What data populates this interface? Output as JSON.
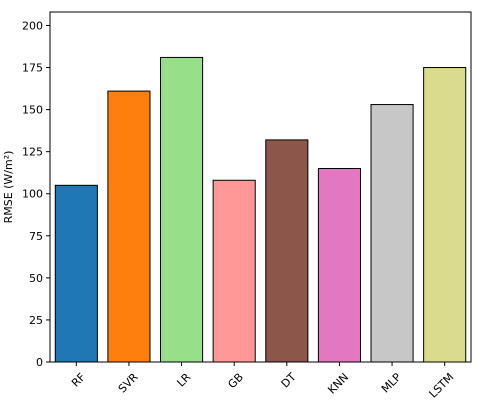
{
  "chart_data": {
    "type": "bar",
    "title": "",
    "xlabel": "",
    "ylabel": "RMSE (W/m²)",
    "categories": [
      "RF",
      "SVR",
      "LR",
      "GB",
      "DT",
      "KNN",
      "MLP",
      "LSTM"
    ],
    "values": [
      105,
      161,
      181,
      108,
      132,
      115,
      153,
      175
    ],
    "colors": [
      "#1f77b4",
      "#ff7f0e",
      "#98df8a",
      "#ff9896",
      "#8c564b",
      "#e377c2",
      "#c7c7c7",
      "#dbdb8d"
    ],
    "ylim": [
      0,
      208
    ],
    "yticks": [
      0,
      25,
      50,
      75,
      100,
      125,
      150,
      175,
      200
    ],
    "grid": false,
    "legend": "none"
  }
}
